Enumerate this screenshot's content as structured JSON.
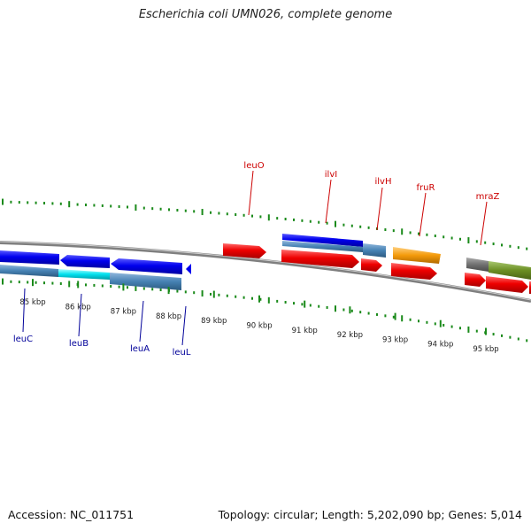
{
  "title": "Escherichia coli UMN026, complete genome",
  "accession": "Accession: NC_011751",
  "summary": "Topology: circular; Length: 5,202,090 bp; Genes: 5,014",
  "tick_labels": [
    "85 kbp",
    "86 kbp",
    "87 kbp",
    "88 kbp",
    "89 kbp",
    "90 kbp",
    "91 kbp",
    "92 kbp",
    "93 kbp",
    "94 kbp",
    "95 kbp"
  ],
  "top_gene_labels": [
    "leuO",
    "ilvI",
    "ilvH",
    "fruR",
    "mraZ"
  ],
  "bottom_gene_labels": [
    "leuC",
    "leuB",
    "leuA",
    "leuL"
  ],
  "colors": {
    "forward_gene": "#ee0000",
    "reverse_gene": "#0000ee",
    "cds_steel": "#4682b4",
    "cds_cyan": "#00e0ee",
    "cds_orange": "#f49a0a",
    "cds_olive": "#6b8e23",
    "cds_gray": "#707070",
    "backbone": "#7f7f7f",
    "gc_skew": "#1a8a1a",
    "top_label": "#cc0000",
    "bottom_label": "#000099"
  }
}
